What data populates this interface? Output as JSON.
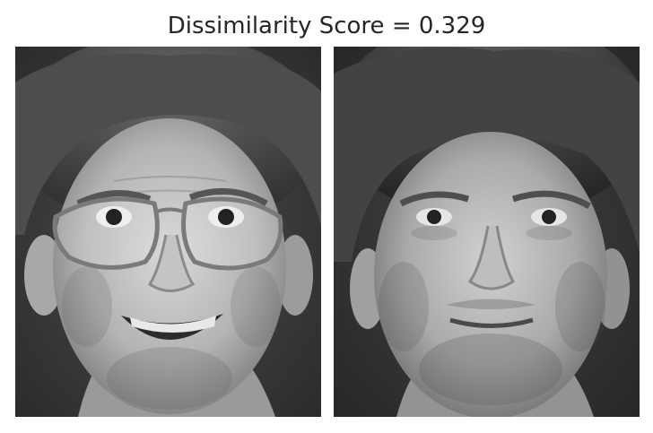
{
  "title": "Dissimilarity Score = 0.329",
  "panels": [
    {
      "subject": "face-with-glasses-smiling",
      "tone": "grayscale"
    },
    {
      "subject": "face-without-glasses-neutral",
      "tone": "grayscale"
    }
  ],
  "colors": {
    "title_text": "#262626",
    "background": "#ffffff"
  }
}
